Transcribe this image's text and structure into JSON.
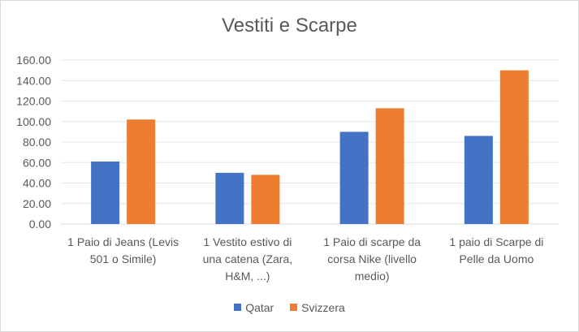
{
  "chart_data": {
    "type": "bar",
    "title": "Vestiti e Scarpe",
    "categories": [
      [
        "1 Paio di Jeans (Levis",
        "501 o Simile)"
      ],
      [
        "1 Vestito estivo di",
        "una catena (Zara,",
        "H&M, ...)"
      ],
      [
        "1 Paio di scarpe da",
        "corsa Nike (livello",
        "medio)"
      ],
      [
        "1 paio di Scarpe di",
        "Pelle da Uomo"
      ]
    ],
    "series": [
      {
        "name": "Qatar",
        "values": [
          61,
          50,
          90,
          86
        ],
        "color": "#4472c4"
      },
      {
        "name": "Svizzera",
        "values": [
          102,
          48,
          113,
          150
        ],
        "color": "#ed7d31"
      }
    ],
    "ylim": [
      0,
      160
    ],
    "yticks": [
      "0.00",
      "20.00",
      "40.00",
      "60.00",
      "80.00",
      "100.00",
      "120.00",
      "140.00",
      "160.00"
    ],
    "grid": true,
    "legend": "bottom"
  }
}
